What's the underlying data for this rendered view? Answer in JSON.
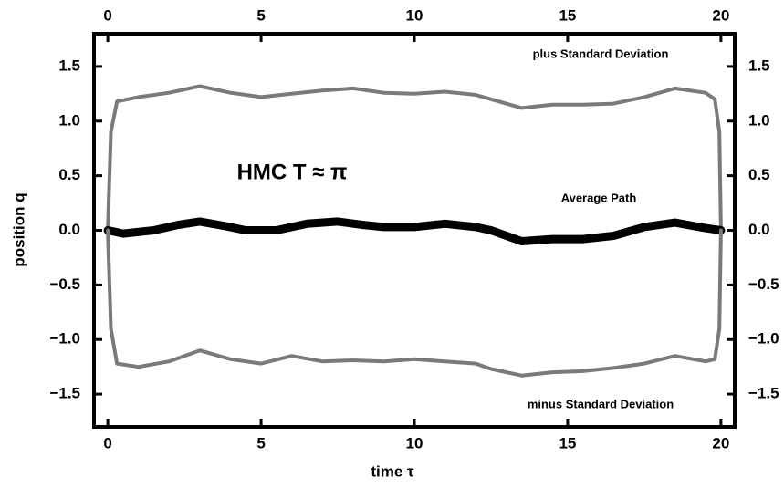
{
  "chart_data": {
    "type": "line",
    "xlabel": "time τ",
    "ylabel": "position q",
    "annotations": [
      "plus Standard Deviation",
      "Average Path",
      "minus Standard Deviation",
      "HMC  T ≈ π"
    ],
    "xlim": [
      -0.45,
      20.45
    ],
    "ylim": [
      -1.8,
      1.8
    ],
    "xticks": [
      0,
      5,
      10,
      15,
      20
    ],
    "yticks": [
      {
        "value": -1.5,
        "label": "−1.5"
      },
      {
        "value": -1.0,
        "label": "−1.0"
      },
      {
        "value": -0.5,
        "label": "−0.5"
      },
      {
        "value": 0,
        "label": "0.0"
      },
      0.5,
      {
        "value": 1.0,
        "label": "1.0"
      },
      1.5
    ],
    "series": [
      {
        "name": "plus Standard Deviation",
        "color": "#7a7a7a",
        "x": [
          0,
          0.1,
          0.3,
          1,
          2,
          3,
          4,
          5,
          6,
          7,
          8,
          9,
          10,
          11,
          12,
          12.5,
          13.5,
          14.5,
          15.5,
          16.5,
          17.5,
          18.5,
          19.5,
          19.8,
          19.95,
          20
        ],
        "values": [
          0,
          0.9,
          1.18,
          1.22,
          1.26,
          1.32,
          1.26,
          1.22,
          1.25,
          1.28,
          1.3,
          1.26,
          1.25,
          1.27,
          1.24,
          1.2,
          1.12,
          1.15,
          1.15,
          1.16,
          1.22,
          1.3,
          1.26,
          1.2,
          0.9,
          0
        ]
      },
      {
        "name": "Average Path",
        "color": "#000000",
        "x": [
          0,
          0.5,
          1.5,
          2.3,
          3,
          3.8,
          4.5,
          5.5,
          6.5,
          7.5,
          8.3,
          9,
          10,
          11,
          12,
          12.5,
          13.5,
          14.5,
          15.5,
          16.5,
          17.5,
          18.5,
          19.5,
          20
        ],
        "values": [
          0,
          -0.03,
          0,
          0.05,
          0.08,
          0.04,
          0,
          0,
          0.06,
          0.08,
          0.05,
          0.03,
          0.03,
          0.06,
          0.03,
          0,
          -0.1,
          -0.08,
          -0.08,
          -0.05,
          0.03,
          0.07,
          0.02,
          0
        ]
      },
      {
        "name": "minus Standard Deviation",
        "color": "#7a7a7a",
        "x": [
          0,
          0.1,
          0.3,
          1,
          2,
          3,
          4,
          5,
          6,
          7,
          8,
          9,
          10,
          11,
          12,
          12.5,
          13.5,
          14.5,
          15.5,
          16.5,
          17.5,
          18.5,
          19.5,
          19.8,
          19.95,
          20
        ],
        "values": [
          0,
          -0.9,
          -1.22,
          -1.25,
          -1.2,
          -1.1,
          -1.18,
          -1.22,
          -1.15,
          -1.2,
          -1.19,
          -1.2,
          -1.18,
          -1.2,
          -1.22,
          -1.27,
          -1.33,
          -1.3,
          -1.29,
          -1.26,
          -1.22,
          -1.15,
          -1.2,
          -1.18,
          -0.9,
          0
        ]
      }
    ]
  }
}
